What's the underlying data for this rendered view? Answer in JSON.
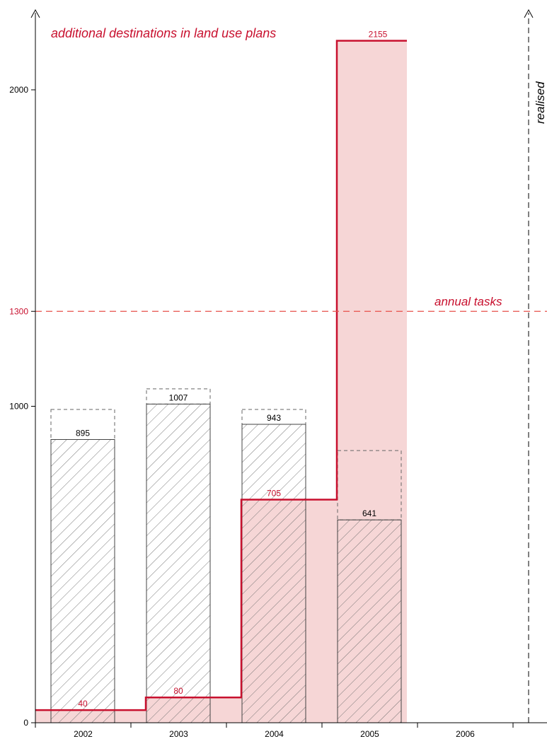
{
  "chart_data": {
    "type": "bar",
    "title": "additional destinations in land use plans",
    "categories": [
      "2002",
      "2003",
      "2004",
      "2005",
      "2006"
    ],
    "y_ticks": [
      0,
      1000,
      1300,
      2000
    ],
    "ylim": [
      0,
      2250
    ],
    "grid": false,
    "series": [
      {
        "name": "realised",
        "style": "hatched bars with dashed outline above",
        "values": [
          895,
          1007,
          943,
          641,
          null
        ],
        "dashed_caps": [
          990,
          1055,
          990,
          860,
          null
        ]
      },
      {
        "name": "additional destinations in land use plans",
        "style": "red step line with shaded area",
        "values": [
          40,
          80,
          705,
          2155,
          null
        ]
      }
    ],
    "reference_lines": [
      {
        "label": "annual tasks",
        "value": 1300
      }
    ],
    "colors": {
      "plans": "#c8102e",
      "plans_fill": "#f6d6d6",
      "annual": "#e8504a",
      "hatch": "#555555"
    }
  }
}
